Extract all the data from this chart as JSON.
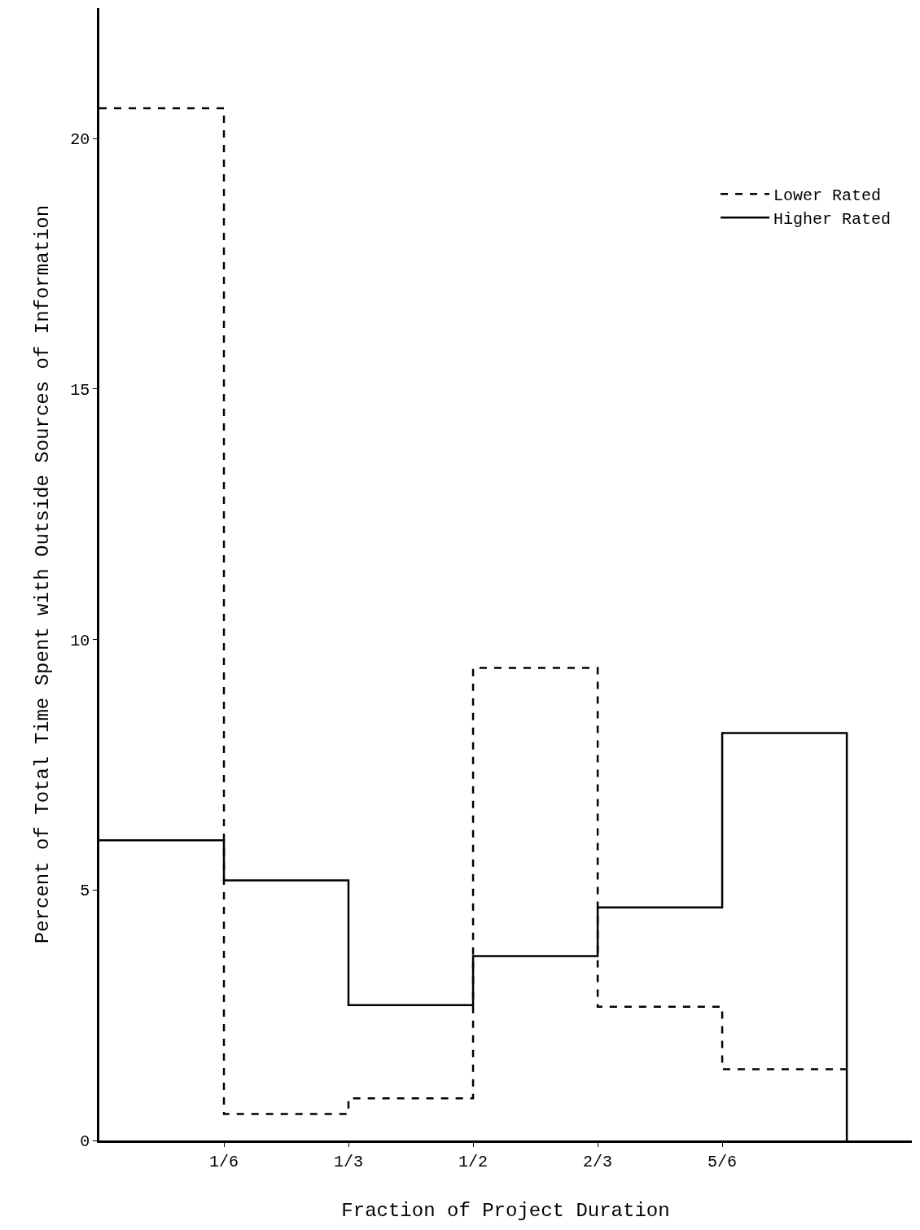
{
  "chart_data": {
    "type": "step",
    "xlabel": "Fraction of Project Duration",
    "ylabel": "Percent of Total Time Spent with Outside Sources of Information",
    "x": [
      0,
      0.1667,
      0.3333,
      0.5,
      0.6667,
      0.8333,
      1
    ],
    "series": [
      {
        "name": "Lower Rated",
        "color": "#000000",
        "line_style": "dashed",
        "values": [
          20.6,
          0.53,
          0.84,
          9.43,
          2.67,
          1.42,
          1.42
        ]
      },
      {
        "name": "Higher Rated",
        "color": "#000000",
        "line_style": "solid",
        "values": [
          5.99,
          5.19,
          2.7,
          3.68,
          4.65,
          8.13,
          0
        ]
      }
    ],
    "xlim": [
      0,
      1.087
    ],
    "xticks": [
      {
        "value": 0.1667,
        "label": "1/6"
      },
      {
        "value": 0.3333,
        "label": "1/3"
      },
      {
        "value": 0.5,
        "label": "1/2"
      },
      {
        "value": 0.6667,
        "label": "2/3"
      },
      {
        "value": 0.8333,
        "label": "5/6"
      }
    ],
    "ylim": [
      0,
      22.6
    ],
    "yticks": [
      0,
      5,
      10,
      15,
      20
    ],
    "legend": "top right"
  }
}
